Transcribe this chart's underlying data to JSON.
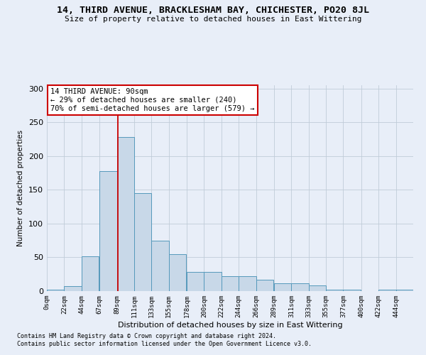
{
  "title": "14, THIRD AVENUE, BRACKLESHAM BAY, CHICHESTER, PO20 8JL",
  "subtitle": "Size of property relative to detached houses in East Wittering",
  "xlabel": "Distribution of detached houses by size in East Wittering",
  "ylabel": "Number of detached properties",
  "footnote1": "Contains HM Land Registry data © Crown copyright and database right 2024.",
  "footnote2": "Contains public sector information licensed under the Open Government Licence v3.0.",
  "bin_labels": [
    "0sqm",
    "22sqm",
    "44sqm",
    "67sqm",
    "89sqm",
    "111sqm",
    "133sqm",
    "155sqm",
    "178sqm",
    "200sqm",
    "222sqm",
    "244sqm",
    "266sqm",
    "289sqm",
    "311sqm",
    "333sqm",
    "355sqm",
    "377sqm",
    "400sqm",
    "422sqm",
    "444sqm"
  ],
  "bar_heights": [
    2,
    7,
    52,
    178,
    228,
    145,
    75,
    55,
    28,
    28,
    22,
    22,
    17,
    12,
    12,
    8,
    2,
    2,
    0,
    2,
    2
  ],
  "bar_color": "#c8d8e8",
  "bar_edge_color": "#5599bb",
  "ylim": [
    0,
    305
  ],
  "yticks": [
    0,
    50,
    100,
    150,
    200,
    250,
    300
  ],
  "property_line_x": 90,
  "property_line_color": "#cc0000",
  "annotation_text": "14 THIRD AVENUE: 90sqm\n← 29% of detached houses are smaller (240)\n70% of semi-detached houses are larger (579) →",
  "annotation_box_color": "#ffffff",
  "annotation_box_edge": "#cc0000",
  "grid_color": "#c0ccd8",
  "background_color": "#e8eef8",
  "bin_width": 22
}
